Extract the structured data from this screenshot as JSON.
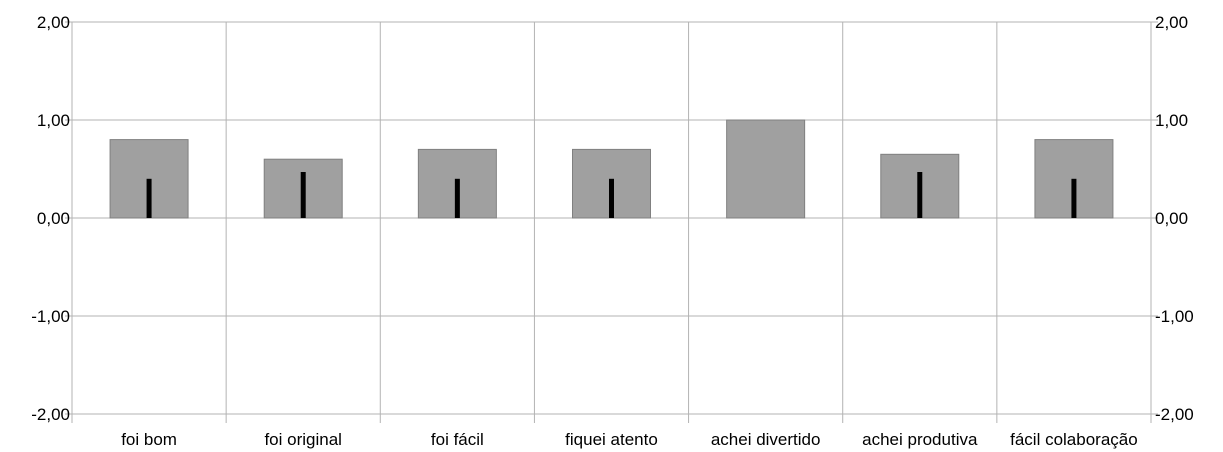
{
  "chart_data": {
    "type": "bar",
    "categories": [
      "foi bom",
      "foi original",
      "foi fácil",
      "fiquei atento",
      "achei divertido",
      "achei produtiva",
      "fácil colaboração"
    ],
    "series": [
      {
        "values": [
          0.8,
          0.6,
          0.7,
          0.7,
          1.0,
          0.65,
          0.8
        ]
      }
    ],
    "error_bars": [
      0.4,
      0.47,
      0.4,
      0.4,
      0.0,
      0.47,
      0.4
    ],
    "ylim": [
      -2,
      2
    ],
    "yticks": [
      -2,
      -1,
      0,
      1,
      2
    ],
    "ytick_labels": [
      "-2,00",
      "-1,00",
      "0,00",
      "1,00",
      "2,00"
    ],
    "secondary_y_axis": true,
    "grid": true,
    "title": "",
    "xlabel": "",
    "ylabel": "",
    "colors": {
      "bar": "#a0a0a0",
      "bar_edge": "#808080",
      "error_bar": "#000000",
      "grid": "#b3b3b3"
    }
  }
}
